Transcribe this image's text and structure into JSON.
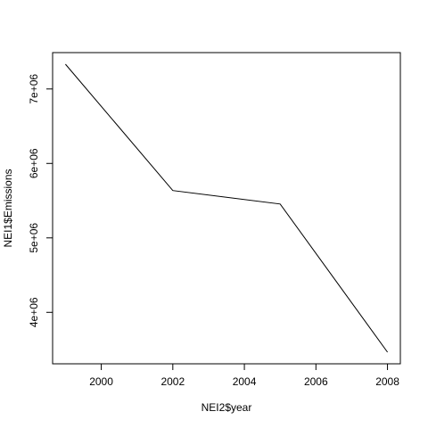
{
  "chart_data": {
    "type": "line",
    "title": "",
    "xlabel": "NEI2$year",
    "ylabel": "NEI1$Emissions",
    "x": [
      1999,
      2002,
      2005,
      2008
    ],
    "series": [
      {
        "values": [
          7332967,
          5635780,
          5454703,
          3464206
        ]
      }
    ],
    "xlim": [
      1998.64,
      2008.36
    ],
    "ylim": [
      3308815,
      7488358
    ],
    "xticks": [
      2000,
      2002,
      2004,
      2006,
      2008
    ],
    "xtick_labels": [
      "2000",
      "2002",
      "2004",
      "2006",
      "2008"
    ],
    "yticks": [
      4000000,
      5000000,
      6000000,
      7000000
    ],
    "ytick_labels": [
      "4e+06",
      "5e+06",
      "6e+06",
      "7e+06"
    ],
    "grid": false,
    "legend": "none",
    "line_color": "#000000"
  }
}
